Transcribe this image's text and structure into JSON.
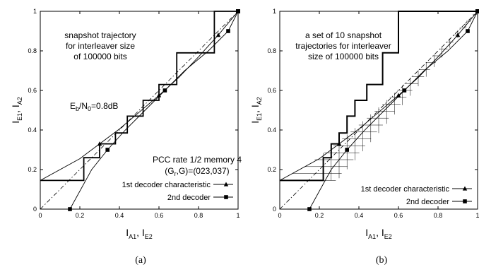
{
  "chart_data": [
    {
      "panel": "a",
      "type": "line",
      "caption": "(a)",
      "xlabel": {
        "main": "I",
        "parts": [
          {
            "sub": "A1"
          },
          {
            "text": ", I"
          },
          {
            "sub": "E2"
          }
        ]
      },
      "ylabel": {
        "main": "I",
        "parts": [
          {
            "sub": "E1"
          },
          {
            "text": ", I"
          },
          {
            "sub": "A2"
          }
        ]
      },
      "xlim": [
        0,
        1
      ],
      "ylim": [
        0,
        1
      ],
      "x_ticks": [
        "0",
        "0.2",
        "0.4",
        "0.6",
        "0.8",
        "1"
      ],
      "y_ticks": [
        "0",
        "0.2",
        "0.4",
        "0.6",
        "0.8",
        "1"
      ],
      "annotations": {
        "title_lines": [
          "snapshot trajectory",
          "for interleaver size",
          "of 100000 bits"
        ],
        "ebno": {
          "pre": "E",
          "sub1": "b",
          "mid": "/N",
          "sub2": "0",
          "post": "=0.8dB"
        },
        "code_lines": [
          "PCC rate 1/2 memory 4"
        ],
        "generator": {
          "pre": "(G",
          "sub": "r",
          "post": ",G)=(023,037)"
        }
      },
      "legend": [
        "1st decoder characteristic",
        "2nd decoder"
      ],
      "series": [
        {
          "name": "1st decoder characteristic",
          "marker": "triangle",
          "x": [
            0,
            0.2,
            0.3,
            0.4,
            0.5,
            0.6,
            0.7,
            0.8,
            0.9,
            1.0
          ],
          "y": [
            0.145,
            0.255,
            0.33,
            0.405,
            0.49,
            0.575,
            0.665,
            0.77,
            0.88,
            1.0
          ]
        },
        {
          "name": "2nd decoder",
          "marker": "square",
          "x": [
            0.15,
            0.26,
            0.34,
            0.43,
            0.53,
            0.63,
            0.73,
            0.85,
            0.95,
            1.0
          ],
          "y": [
            0.0,
            0.2,
            0.3,
            0.4,
            0.5,
            0.6,
            0.7,
            0.8,
            0.9,
            1.0
          ]
        },
        {
          "name": "diagonal",
          "style": "dash-dot",
          "x": [
            0,
            1
          ],
          "y": [
            0,
            1
          ]
        }
      ],
      "trajectory": [
        {
          "x": 0,
          "y": 0.145
        },
        {
          "x": 0.22,
          "y": 0.145
        },
        {
          "x": 0.22,
          "y": 0.26
        },
        {
          "x": 0.3,
          "y": 0.26
        },
        {
          "x": 0.3,
          "y": 0.33
        },
        {
          "x": 0.38,
          "y": 0.33
        },
        {
          "x": 0.38,
          "y": 0.385
        },
        {
          "x": 0.44,
          "y": 0.385
        },
        {
          "x": 0.44,
          "y": 0.47
        },
        {
          "x": 0.52,
          "y": 0.47
        },
        {
          "x": 0.52,
          "y": 0.55
        },
        {
          "x": 0.6,
          "y": 0.55
        },
        {
          "x": 0.6,
          "y": 0.63
        },
        {
          "x": 0.69,
          "y": 0.63
        },
        {
          "x": 0.69,
          "y": 0.79
        },
        {
          "x": 0.88,
          "y": 0.79
        },
        {
          "x": 0.88,
          "y": 1.0
        },
        {
          "x": 1.0,
          "y": 1.0
        }
      ]
    },
    {
      "panel": "b",
      "type": "line",
      "caption": "(b)",
      "xlabel": {
        "main": "I",
        "parts": [
          {
            "sub": "A1"
          },
          {
            "text": ", I"
          },
          {
            "sub": "E2"
          }
        ]
      },
      "ylabel": {
        "main": "I",
        "parts": [
          {
            "sub": "E1"
          },
          {
            "text": ", I"
          },
          {
            "sub": "A2"
          }
        ]
      },
      "xlim": [
        0,
        1
      ],
      "ylim": [
        0,
        1
      ],
      "x_ticks": [
        "0",
        "0.2",
        "0.4",
        "0.6",
        "0.8",
        "1"
      ],
      "y_ticks": [
        "0",
        "0.2",
        "0.4",
        "0.6",
        "0.8",
        "1"
      ],
      "annotations": {
        "title_lines": [
          "a set of 10 snapshot",
          "trajectories for interleaver",
          "size of 100000 bits"
        ]
      },
      "legend": [
        "1st decoder characteristic",
        "2nd decoder"
      ],
      "series": [
        {
          "name": "1st decoder characteristic",
          "marker": "triangle",
          "x": [
            0,
            0.2,
            0.3,
            0.4,
            0.5,
            0.6,
            0.7,
            0.8,
            0.9,
            1.0
          ],
          "y": [
            0.145,
            0.255,
            0.33,
            0.405,
            0.49,
            0.575,
            0.665,
            0.77,
            0.88,
            1.0
          ]
        },
        {
          "name": "2nd decoder",
          "marker": "square",
          "x": [
            0.15,
            0.26,
            0.34,
            0.43,
            0.53,
            0.63,
            0.73,
            0.85,
            0.95,
            1.0
          ],
          "y": [
            0.0,
            0.2,
            0.3,
            0.4,
            0.5,
            0.6,
            0.7,
            0.8,
            0.9,
            1.0
          ]
        },
        {
          "name": "diagonal",
          "style": "dash-dot",
          "x": [
            0,
            1
          ],
          "y": [
            0,
            1
          ]
        }
      ],
      "trajectory_set": {
        "count": 10,
        "x_levels": [
          0.22,
          0.26,
          0.3,
          0.34,
          0.38,
          0.42,
          0.46,
          0.5,
          0.54,
          0.58,
          0.62,
          0.66,
          0.7,
          0.74,
          0.78,
          0.82,
          0.86,
          0.9,
          0.94,
          1.0
        ],
        "bold_x_levels": [
          0.22,
          0.26,
          0.3,
          0.34,
          0.38,
          0.44,
          0.52,
          0.6,
          0.69,
          0.88
        ],
        "bold_y_levels": [
          0.145,
          0.26,
          0.33,
          0.385,
          0.47,
          0.55,
          0.63,
          0.79,
          1.0
        ]
      }
    }
  ]
}
